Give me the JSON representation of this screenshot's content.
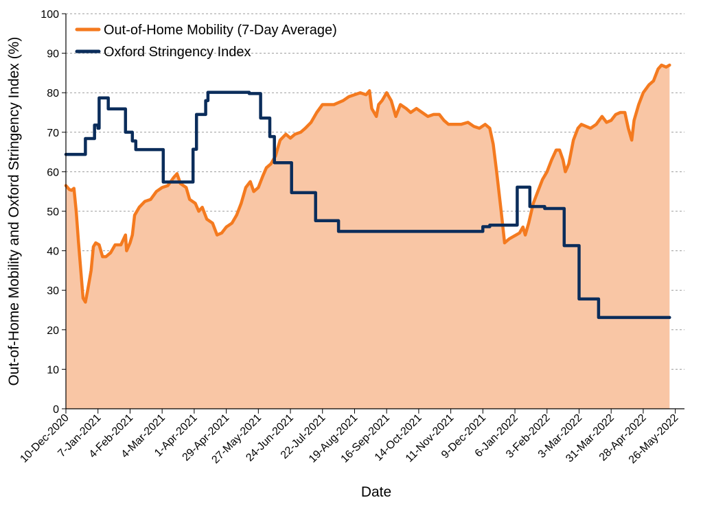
{
  "chart_data": {
    "type": "line",
    "xlabel": "Date",
    "ylabel": "Out-of-Home Mobility and Oxford Stringency Index (%)",
    "ylim": [
      0,
      100
    ],
    "yticks": [
      0,
      10,
      20,
      30,
      40,
      50,
      60,
      70,
      80,
      90,
      100
    ],
    "xlim": [
      "2020-12-10",
      "2022-06-03"
    ],
    "xticks": [
      "10-Dec-2020",
      "7-Jan-2021",
      "4-Feb-2021",
      "4-Mar-2021",
      "1-Apr-2021",
      "29-Apr-2021",
      "27-May-2021",
      "24-Jun-2021",
      "22-Jul-2021",
      "19-Aug-2021",
      "16-Sep-2021",
      "14-Oct-2021",
      "11-Nov-2021",
      "9-Dec-2021",
      "6-Jan-2022",
      "3-Feb-2022",
      "3-Mar-2022",
      "31-Mar-2022",
      "28-Apr-2022",
      "26-May-2022"
    ],
    "grid": "horizontal dashed",
    "legend_position": "top-left",
    "colors": {
      "mobility_line": "#F47A1F",
      "mobility_fill": "#F9C6A5",
      "stringency": "#0B2D5B"
    },
    "series": [
      {
        "name": "Out-of-Home Mobility (7-Day Average)",
        "style": "line-with-area",
        "points": [
          [
            "2020-12-10",
            56.5
          ],
          [
            "2020-12-13",
            55.5
          ],
          [
            "2020-12-15",
            55.3
          ],
          [
            "2020-12-17",
            55.8
          ],
          [
            "2020-12-19",
            50
          ],
          [
            "2020-12-21",
            42
          ],
          [
            "2020-12-23",
            35
          ],
          [
            "2020-12-25",
            28
          ],
          [
            "2020-12-27",
            27
          ],
          [
            "2020-12-29",
            30
          ],
          [
            "2021-01-01",
            35
          ],
          [
            "2021-01-03",
            41
          ],
          [
            "2021-01-05",
            42
          ],
          [
            "2021-01-08",
            41.5
          ],
          [
            "2021-01-11",
            38.5
          ],
          [
            "2021-01-14",
            38.5
          ],
          [
            "2021-01-18",
            39.5
          ],
          [
            "2021-01-22",
            41.5
          ],
          [
            "2021-01-27",
            41.5
          ],
          [
            "2021-01-31",
            44
          ],
          [
            "2021-02-01",
            40
          ],
          [
            "2021-02-04",
            42
          ],
          [
            "2021-02-06",
            44
          ],
          [
            "2021-02-08",
            49
          ],
          [
            "2021-02-12",
            51
          ],
          [
            "2021-02-17",
            52.5
          ],
          [
            "2021-02-22",
            53
          ],
          [
            "2021-02-27",
            55
          ],
          [
            "2021-03-04",
            56
          ],
          [
            "2021-03-09",
            56.5
          ],
          [
            "2021-03-14",
            58.5
          ],
          [
            "2021-03-17",
            59.5
          ],
          [
            "2021-03-20",
            57
          ],
          [
            "2021-03-25",
            56
          ],
          [
            "2021-03-28",
            53
          ],
          [
            "2021-04-02",
            52
          ],
          [
            "2021-04-05",
            50
          ],
          [
            "2021-04-08",
            51
          ],
          [
            "2021-04-12",
            48
          ],
          [
            "2021-04-17",
            47
          ],
          [
            "2021-04-21",
            44
          ],
          [
            "2021-04-25",
            44.5
          ],
          [
            "2021-04-29",
            46
          ],
          [
            "2021-05-04",
            47
          ],
          [
            "2021-05-08",
            49
          ],
          [
            "2021-05-12",
            52
          ],
          [
            "2021-05-16",
            56
          ],
          [
            "2021-05-20",
            57.5
          ],
          [
            "2021-05-23",
            55
          ],
          [
            "2021-05-27",
            56
          ],
          [
            "2021-05-31",
            59
          ],
          [
            "2021-06-03",
            61
          ],
          [
            "2021-06-07",
            62
          ],
          [
            "2021-06-11",
            64
          ],
          [
            "2021-06-15",
            68
          ],
          [
            "2021-06-20",
            69.5
          ],
          [
            "2021-06-24",
            68.5
          ],
          [
            "2021-06-28",
            69.5
          ],
          [
            "2021-07-03",
            70
          ],
          [
            "2021-07-07",
            71
          ],
          [
            "2021-07-12",
            72.5
          ],
          [
            "2021-07-17",
            75
          ],
          [
            "2021-07-22",
            77
          ],
          [
            "2021-07-27",
            77
          ],
          [
            "2021-08-01",
            77
          ],
          [
            "2021-08-05",
            77.5
          ],
          [
            "2021-08-09",
            78
          ],
          [
            "2021-08-14",
            79
          ],
          [
            "2021-08-19",
            79.5
          ],
          [
            "2021-08-24",
            80
          ],
          [
            "2021-08-29",
            79.5
          ],
          [
            "2021-09-01",
            80.5
          ],
          [
            "2021-09-03",
            76
          ],
          [
            "2021-09-07",
            74
          ],
          [
            "2021-09-09",
            77
          ],
          [
            "2021-09-12",
            78
          ],
          [
            "2021-09-16",
            80
          ],
          [
            "2021-09-20",
            78
          ],
          [
            "2021-09-24",
            74
          ],
          [
            "2021-09-28",
            77
          ],
          [
            "2021-10-03",
            76
          ],
          [
            "2021-10-07",
            75
          ],
          [
            "2021-10-12",
            76
          ],
          [
            "2021-10-17",
            75
          ],
          [
            "2021-10-22",
            74
          ],
          [
            "2021-10-27",
            74.5
          ],
          [
            "2021-11-01",
            74.5
          ],
          [
            "2021-11-05",
            73
          ],
          [
            "2021-11-09",
            72
          ],
          [
            "2021-11-14",
            72
          ],
          [
            "2021-11-20",
            72
          ],
          [
            "2021-11-26",
            72.5
          ],
          [
            "2021-12-01",
            71.5
          ],
          [
            "2021-12-06",
            71
          ],
          [
            "2021-12-11",
            72
          ],
          [
            "2021-12-15",
            71
          ],
          [
            "2021-12-18",
            67
          ],
          [
            "2021-12-21",
            60
          ],
          [
            "2021-12-25",
            50
          ],
          [
            "2021-12-28",
            42
          ],
          [
            "2022-01-01",
            43
          ],
          [
            "2022-01-04",
            43.5
          ],
          [
            "2022-01-07",
            44
          ],
          [
            "2022-01-10",
            44.5
          ],
          [
            "2022-01-13",
            46
          ],
          [
            "2022-01-15",
            44
          ],
          [
            "2022-01-18",
            47
          ],
          [
            "2022-01-22",
            52
          ],
          [
            "2022-01-26",
            55
          ],
          [
            "2022-01-30",
            58
          ],
          [
            "2022-02-03",
            60
          ],
          [
            "2022-02-07",
            63
          ],
          [
            "2022-02-11",
            65.5
          ],
          [
            "2022-02-14",
            65.5
          ],
          [
            "2022-02-17",
            63
          ],
          [
            "2022-02-19",
            60
          ],
          [
            "2022-02-22",
            62
          ],
          [
            "2022-02-26",
            68
          ],
          [
            "2022-03-02",
            71
          ],
          [
            "2022-03-05",
            72
          ],
          [
            "2022-03-09",
            71.5
          ],
          [
            "2022-03-13",
            71
          ],
          [
            "2022-03-18",
            72
          ],
          [
            "2022-03-23",
            74
          ],
          [
            "2022-03-27",
            72.5
          ],
          [
            "2022-03-31",
            73
          ],
          [
            "2022-04-04",
            74.5
          ],
          [
            "2022-04-08",
            75
          ],
          [
            "2022-04-12",
            75
          ],
          [
            "2022-04-15",
            71
          ],
          [
            "2022-04-18",
            68
          ],
          [
            "2022-04-20",
            73
          ],
          [
            "2022-04-24",
            77
          ],
          [
            "2022-04-28",
            80
          ],
          [
            "2022-05-03",
            82
          ],
          [
            "2022-05-07",
            83
          ],
          [
            "2022-05-11",
            86
          ],
          [
            "2022-05-14",
            87
          ],
          [
            "2022-05-18",
            86.5
          ],
          [
            "2022-05-21",
            87
          ]
        ]
      },
      {
        "name": "Oxford Stringency Index",
        "style": "step",
        "points": [
          [
            "2020-12-10",
            64.4
          ],
          [
            "2020-12-27",
            64.4
          ],
          [
            "2020-12-27",
            68.4
          ],
          [
            "2021-01-04",
            68.4
          ],
          [
            "2021-01-04",
            71.8
          ],
          [
            "2021-01-07",
            71.8
          ],
          [
            "2021-01-07",
            71
          ],
          [
            "2021-01-08",
            71
          ],
          [
            "2021-01-08",
            78.7
          ],
          [
            "2021-01-16",
            78.7
          ],
          [
            "2021-01-16",
            75.9
          ],
          [
            "2021-01-31",
            75.9
          ],
          [
            "2021-01-31",
            70
          ],
          [
            "2021-02-06",
            70
          ],
          [
            "2021-02-06",
            67.8
          ],
          [
            "2021-02-09",
            67.8
          ],
          [
            "2021-02-09",
            65.6
          ],
          [
            "2021-03-05",
            65.6
          ],
          [
            "2021-03-05",
            57.4
          ],
          [
            "2021-03-31",
            57.4
          ],
          [
            "2021-03-31",
            65.7
          ],
          [
            "2021-04-03",
            65.7
          ],
          [
            "2021-04-03",
            74.5
          ],
          [
            "2021-04-11",
            74.5
          ],
          [
            "2021-04-11",
            78
          ],
          [
            "2021-04-13",
            78
          ],
          [
            "2021-04-13",
            80.1
          ],
          [
            "2021-05-19",
            80.1
          ],
          [
            "2021-05-19",
            79.8
          ],
          [
            "2021-05-29",
            79.8
          ],
          [
            "2021-05-29",
            73.6
          ],
          [
            "2021-06-06",
            73.6
          ],
          [
            "2021-06-06",
            68.9
          ],
          [
            "2021-06-10",
            68.9
          ],
          [
            "2021-06-10",
            62.3
          ],
          [
            "2021-06-25",
            62.3
          ],
          [
            "2021-06-25",
            54.7
          ],
          [
            "2021-07-16",
            54.7
          ],
          [
            "2021-07-16",
            47.6
          ],
          [
            "2021-08-05",
            47.6
          ],
          [
            "2021-08-05",
            44.9
          ],
          [
            "2021-12-09",
            44.9
          ],
          [
            "2021-12-09",
            46.1
          ],
          [
            "2021-12-15",
            46.1
          ],
          [
            "2021-12-15",
            46.5
          ],
          [
            "2022-01-08",
            46.5
          ],
          [
            "2022-01-08",
            56.1
          ],
          [
            "2022-01-19",
            56.1
          ],
          [
            "2022-01-19",
            51.2
          ],
          [
            "2022-02-01",
            51.2
          ],
          [
            "2022-02-01",
            50.7
          ],
          [
            "2022-02-18",
            50.7
          ],
          [
            "2022-02-18",
            41.3
          ],
          [
            "2022-03-03",
            41.3
          ],
          [
            "2022-03-03",
            27.8
          ],
          [
            "2022-03-20",
            27.8
          ],
          [
            "2022-03-20",
            23.1
          ],
          [
            "2022-05-21",
            23.1
          ]
        ]
      }
    ]
  }
}
